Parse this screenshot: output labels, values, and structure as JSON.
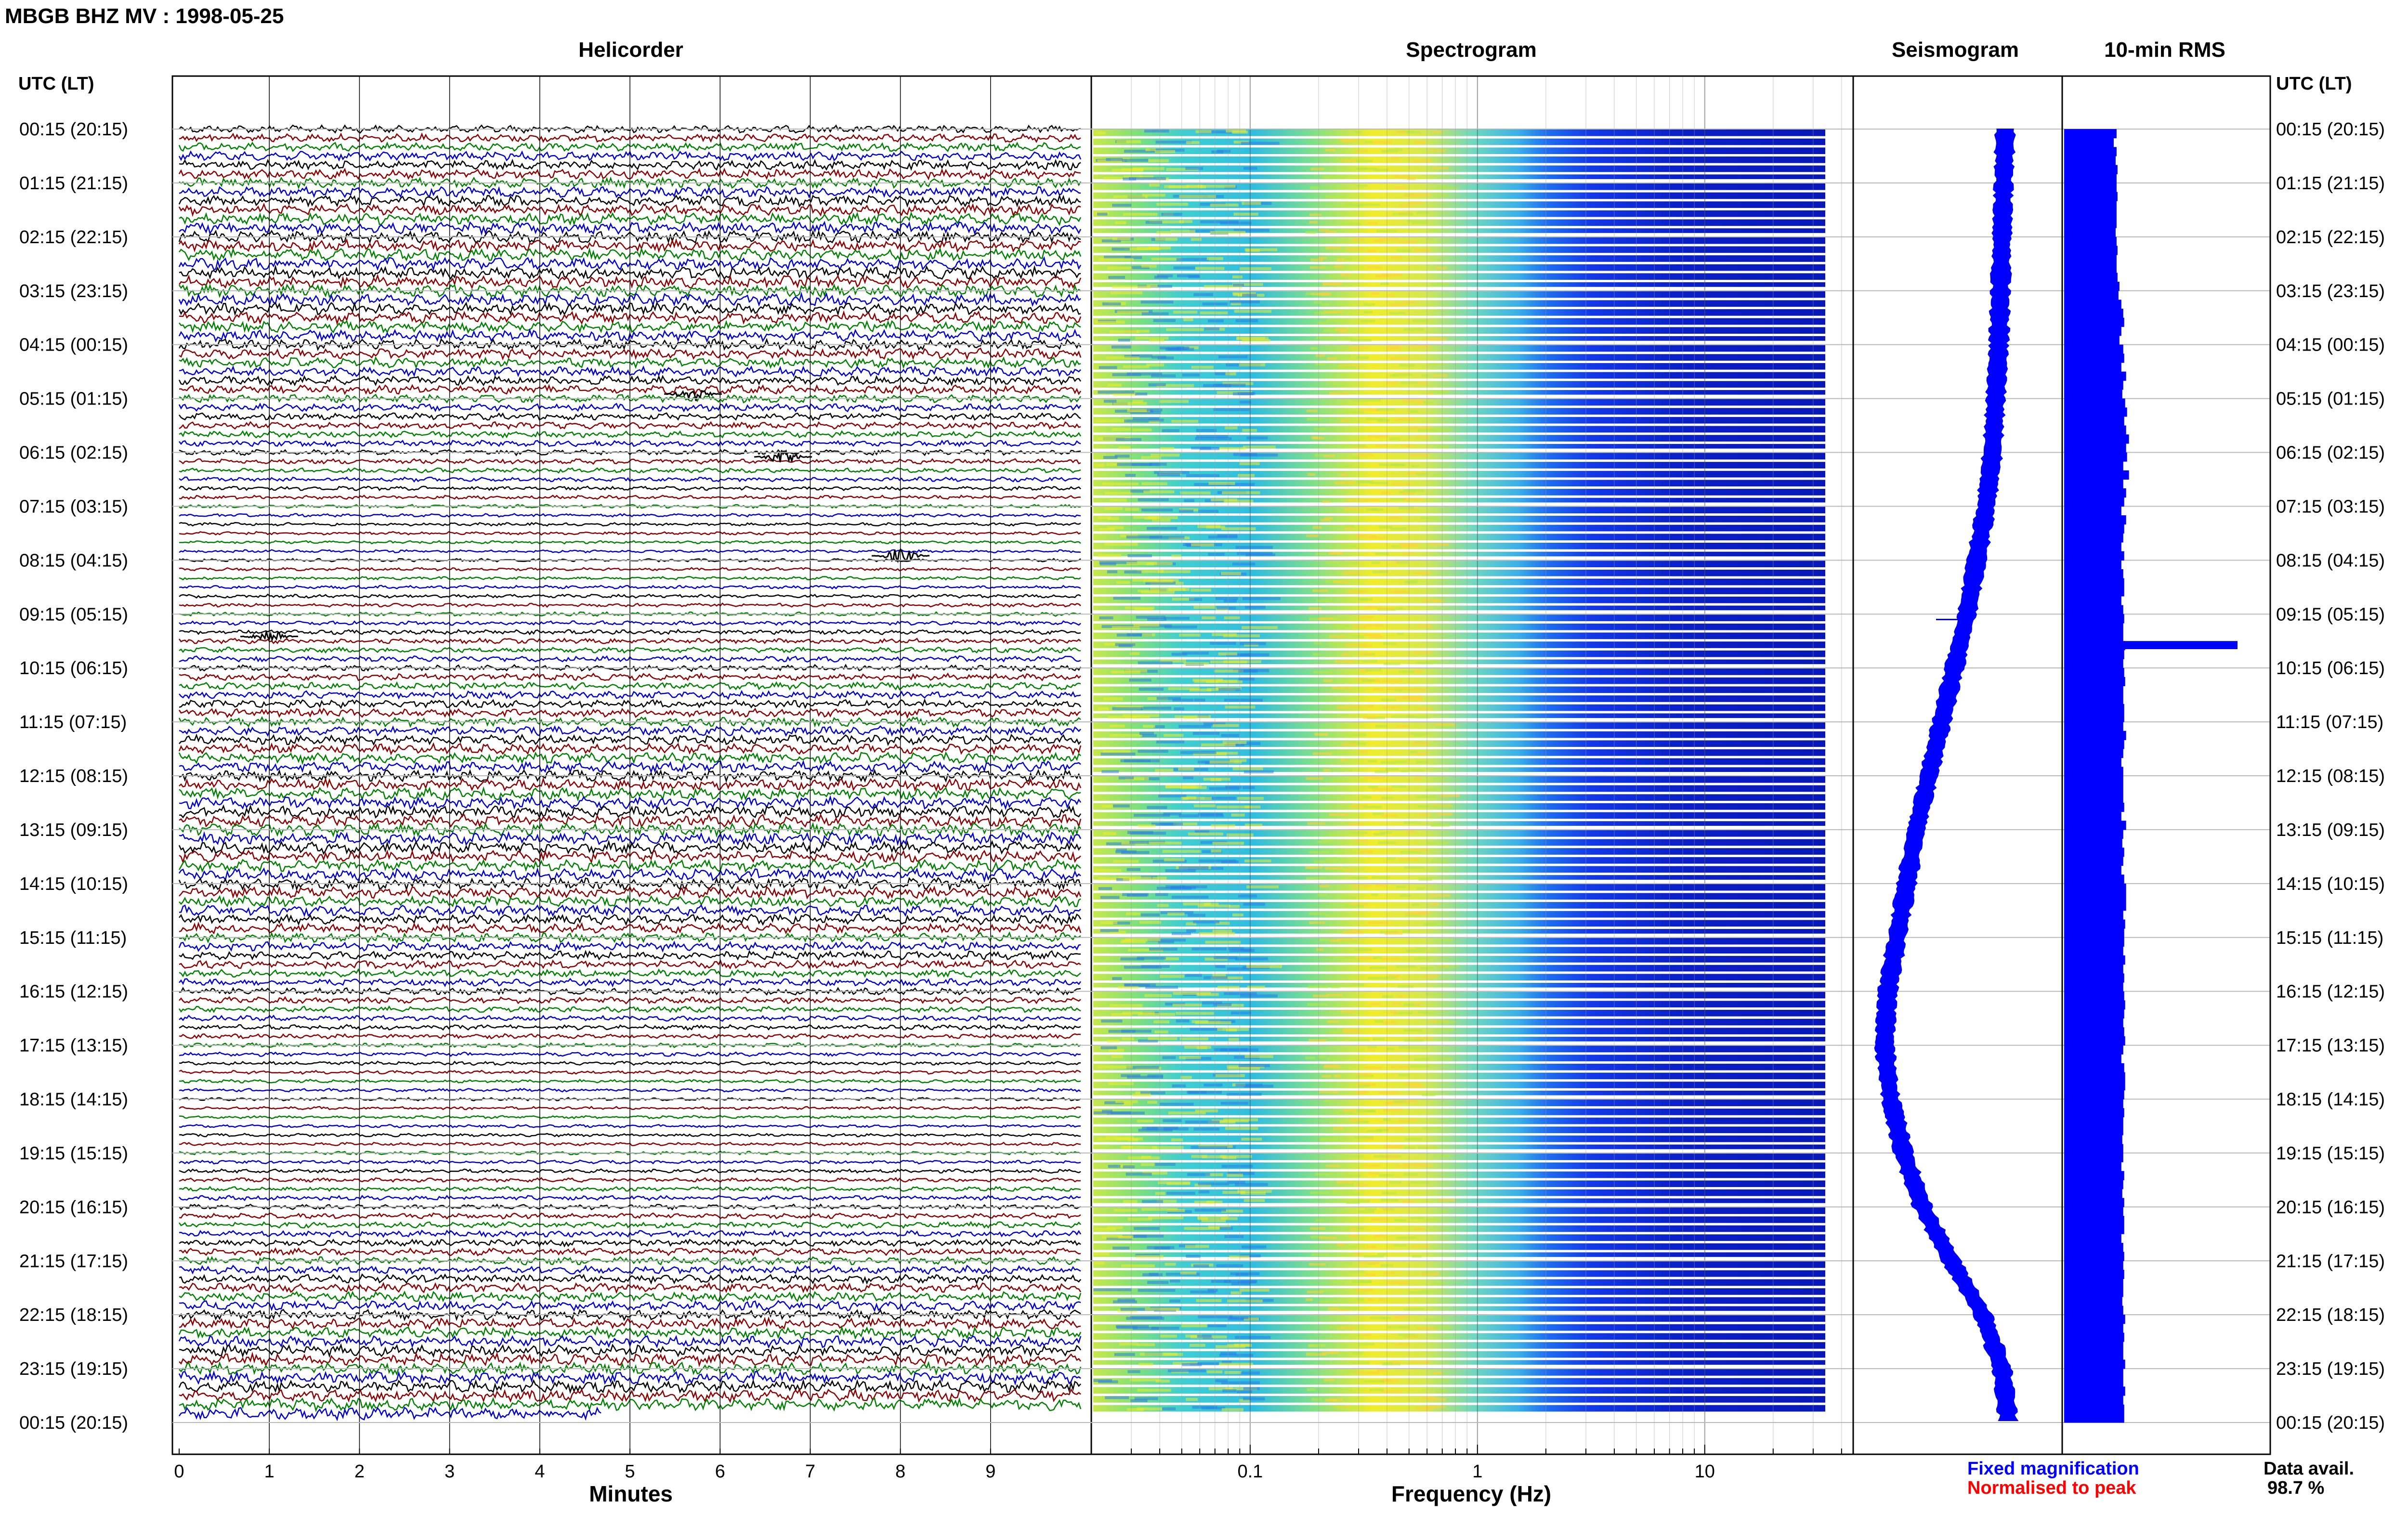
{
  "title": "MBGB BHZ MV : 1998-05-25",
  "panels": {
    "helicorder": "Helicorder",
    "spectrogram": "Spectrogram",
    "seismogram": "Seismogram",
    "rms": "10-min RMS"
  },
  "left_axis_label": "UTC (LT)",
  "right_axis_label": "UTC (LT)",
  "time_labels": [
    "00:15 (20:15)",
    "01:15 (21:15)",
    "02:15 (22:15)",
    "03:15 (23:15)",
    "04:15 (00:15)",
    "05:15 (01:15)",
    "06:15 (02:15)",
    "07:15 (03:15)",
    "08:15 (04:15)",
    "09:15 (05:15)",
    "10:15 (06:15)",
    "11:15 (07:15)",
    "12:15 (08:15)",
    "13:15 (09:15)",
    "14:15 (10:15)",
    "15:15 (11:15)",
    "16:15 (12:15)",
    "17:15 (13:15)",
    "18:15 (14:15)",
    "19:15 (15:15)",
    "20:15 (16:15)",
    "21:15 (17:15)",
    "22:15 (18:15)",
    "23:15 (19:15)",
    "00:15 (20:15)"
  ],
  "helicorder_xlabel": "Minutes",
  "helicorder_ticks": [
    "0",
    "1",
    "2",
    "3",
    "4",
    "5",
    "6",
    "7",
    "8",
    "9"
  ],
  "spectrogram_xlabel": "Frequency (Hz)",
  "spectrogram_ticks": [
    "0.1",
    "1",
    "10"
  ],
  "legend": {
    "fixed": "Fixed magnification",
    "normalised": "Normalised to peak",
    "fixed_color": "#0000ff",
    "normalised_color": "#ff0000"
  },
  "data_avail_label": "Data avail.",
  "data_avail_value": "98.7 %",
  "trace_colors": [
    "#000000",
    "#8b0000",
    "#008000",
    "#0000cc"
  ],
  "chart_data": [
    {
      "type": "line",
      "panel": "Helicorder",
      "xlabel": "Minutes",
      "xlim": [
        0,
        10
      ],
      "rows_per_hour": 6,
      "hours": 24,
      "events": [
        {
          "time": "05:15",
          "minute": 5.7
        },
        {
          "time": "06:25",
          "minute": 6.7
        },
        {
          "time": "08:15",
          "minute": 8.0
        },
        {
          "time": "09:45",
          "minute": 1.0
        }
      ]
    },
    {
      "type": "heatmap",
      "panel": "Spectrogram",
      "xlabel": "Frequency (Hz)",
      "xscale": "log",
      "xlim": [
        0.02,
        40
      ],
      "peak_frequency_hz": 0.35,
      "colormap": "jet"
    },
    {
      "type": "line",
      "panel": "Seismogram",
      "series": [
        {
          "values": [
            0.92,
            0.91,
            0.9,
            0.89,
            0.88,
            0.86,
            0.84,
            0.8,
            0.74,
            0.68,
            0.6,
            0.52,
            0.44,
            0.36,
            0.3,
            0.24,
            0.18,
            0.16,
            0.2,
            0.28,
            0.4,
            0.58,
            0.78,
            0.9,
            0.94
          ]
        }
      ]
    },
    {
      "type": "bar",
      "panel": "10-min RMS",
      "orientation": "horizontal",
      "values": [
        0.55,
        0.52,
        0.55,
        0.54,
        0.56,
        0.55,
        0.55,
        0.56,
        0.55,
        0.55,
        0.55,
        0.54,
        0.55,
        0.56,
        0.55,
        0.55,
        0.56,
        0.58,
        0.57,
        0.6,
        0.62,
        0.63,
        0.6,
        0.58,
        0.62,
        0.63,
        0.6,
        0.65,
        0.62,
        0.61,
        0.64,
        0.66,
        0.63,
        0.65,
        0.68,
        0.65,
        0.66,
        0.62,
        0.68,
        0.62,
        0.65,
        0.63,
        0.6,
        0.65,
        0.63,
        0.62,
        0.6,
        0.63,
        0.6,
        0.62,
        0.63,
        0.63,
        0.6,
        0.62,
        0.63,
        0.62,
        0.62,
        0.64,
        0.63,
        0.62,
        0.63,
        0.64,
        0.62,
        0.62,
        0.63,
        0.63,
        0.62,
        0.65,
        0.63,
        0.62,
        0.6,
        0.62,
        0.62,
        0.62,
        0.62,
        0.63,
        0.6,
        0.65,
        0.62,
        0.61,
        0.63,
        0.62,
        0.6,
        0.63,
        0.65,
        0.65,
        0.65,
        0.62,
        0.64,
        0.63,
        0.63,
        0.62,
        0.64,
        0.62,
        0.63,
        0.62,
        0.63,
        0.64,
        0.63,
        0.62,
        0.63,
        0.64,
        0.62,
        0.6,
        0.63,
        0.64,
        0.64,
        0.63,
        0.62,
        0.63,
        0.62,
        0.62,
        0.61,
        0.62,
        0.62,
        0.6,
        0.63,
        0.62,
        0.61,
        0.63,
        0.62,
        0.63,
        0.63,
        0.6,
        0.62,
        0.63,
        0.62,
        0.63,
        0.62,
        0.62,
        0.61,
        0.62,
        0.64,
        0.62,
        0.63,
        0.62,
        0.62,
        0.64,
        0.62,
        0.62,
        0.64,
        0.62,
        0.63,
        0.63
      ],
      "spike": {
        "row": 57,
        "value": 1.0
      }
    }
  ]
}
